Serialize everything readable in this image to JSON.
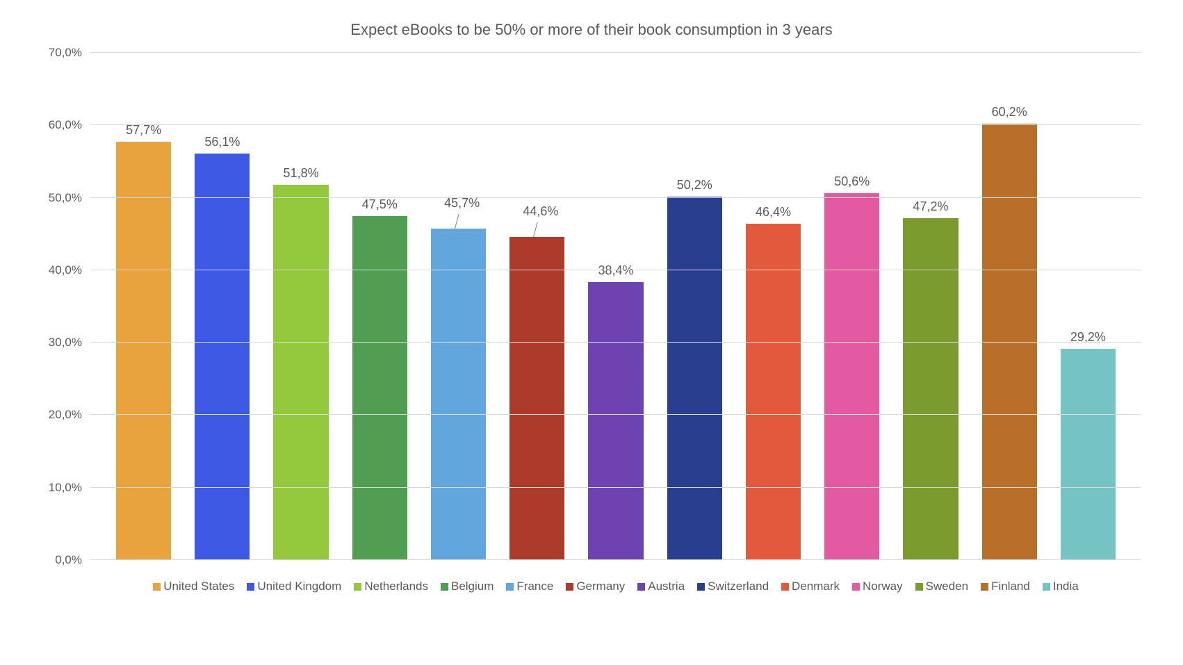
{
  "chart": {
    "type": "bar",
    "title": "Expect eBooks to be 50% or more of their book consumption in 3 years",
    "title_fontsize": 22,
    "title_color": "#595959",
    "label_fontsize": 18,
    "axis_fontsize": 17,
    "text_color": "#595959",
    "background_color": "#ffffff",
    "grid_color": "#d9d9d9",
    "bar_width_pct": 70,
    "ylim": [
      0,
      70
    ],
    "ytick_step": 10,
    "yticks": [
      "0,0%",
      "10,0%",
      "20,0%",
      "30,0%",
      "40,0%",
      "50,0%",
      "60,0%",
      "70,0%"
    ],
    "series": [
      {
        "name": "United States",
        "value": 57.7,
        "label": "57,7%",
        "color": "#e8a33d",
        "leader": false
      },
      {
        "name": "United Kingdom",
        "value": 56.1,
        "label": "56,1%",
        "color": "#3d58e3",
        "leader": false
      },
      {
        "name": "Netherlands",
        "value": 51.8,
        "label": "51,8%",
        "color": "#93c83d",
        "leader": false
      },
      {
        "name": "Belgium",
        "value": 47.5,
        "label": "47,5%",
        "color": "#4f9e52",
        "leader": false
      },
      {
        "name": "France",
        "value": 45.7,
        "label": "45,7%",
        "color": "#61a7dd",
        "leader": true
      },
      {
        "name": "Germany",
        "value": 44.6,
        "label": "44,6%",
        "color": "#ab3b2b",
        "leader": true
      },
      {
        "name": "Austria",
        "value": 38.4,
        "label": "38,4%",
        "color": "#6c43b0",
        "leader": false
      },
      {
        "name": "Switzerland",
        "value": 50.2,
        "label": "50,2%",
        "color": "#2a3e90",
        "leader": false
      },
      {
        "name": "Denmark",
        "value": 46.4,
        "label": "46,4%",
        "color": "#e2593c",
        "leader": false
      },
      {
        "name": "Norway",
        "value": 50.6,
        "label": "50,6%",
        "color": "#e25a9f",
        "leader": false
      },
      {
        "name": "Sweden",
        "value": 47.2,
        "label": "47,2%",
        "color": "#7a9a2e",
        "leader": false
      },
      {
        "name": "Finland",
        "value": 60.2,
        "label": "60,2%",
        "color": "#b86f2a",
        "leader": false
      },
      {
        "name": "India",
        "value": 29.2,
        "label": "29,2%",
        "color": "#76c3c3",
        "leader": false
      }
    ]
  }
}
